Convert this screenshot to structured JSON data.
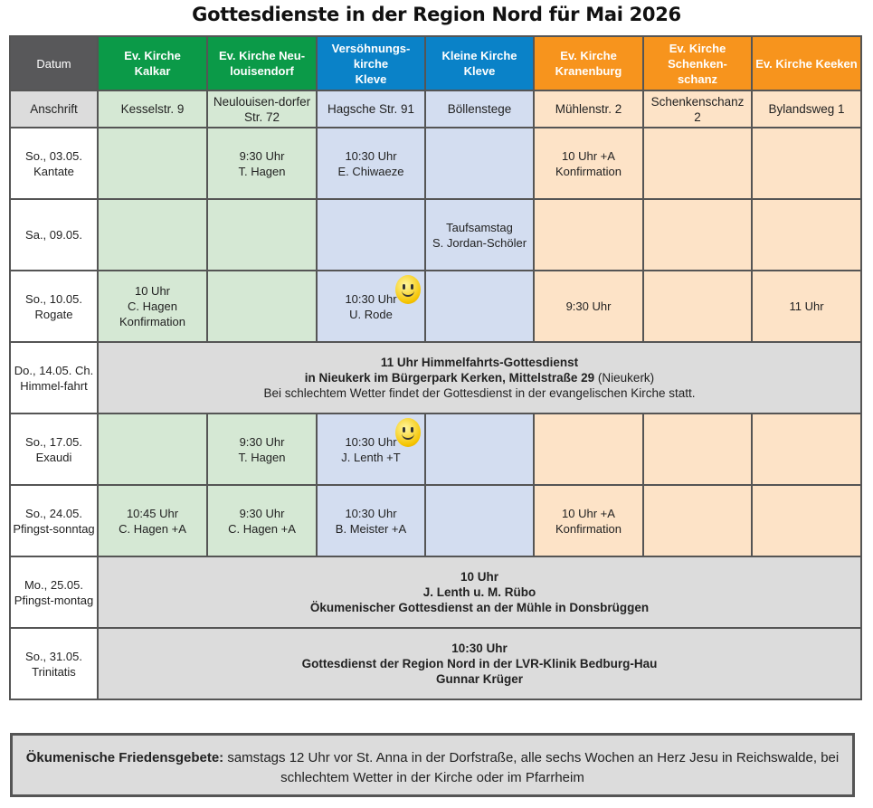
{
  "title": "Gottesdienste in der Region Nord für Mai 2026",
  "colors": {
    "header_dark": "#58585a",
    "green": "#0b9a48",
    "blue": "#0a82c8",
    "orange": "#f7941d"
  },
  "header": {
    "date": "Datum",
    "address_label": "Anschrift",
    "churches": [
      {
        "name": "Ev. Kirche Kalkar",
        "address": "Kesselstr. 9",
        "color": "green"
      },
      {
        "name": "Ev. Kirche Neu-louisendorf",
        "address": "Neulouisen-dorfer Str. 72",
        "color": "green"
      },
      {
        "name": "Versöhnungs-kirche Kleve",
        "address": "Hagsche Str. 91",
        "color": "blue"
      },
      {
        "name": "Kleine Kirche Kleve",
        "address": "Böllenstege",
        "color": "blue"
      },
      {
        "name": "Ev. Kirche Kranenburg",
        "address": "Mühlenstr. 2",
        "color": "orange"
      },
      {
        "name": "Ev. Kirche Schenken-schanz",
        "address": "Schenkenschanz 2",
        "color": "orange"
      },
      {
        "name": "Ev. Kirche Keeken",
        "address": "Bylandsweg 1",
        "color": "orange"
      }
    ]
  },
  "rows": [
    {
      "date": "So., 03.05. Kantate",
      "cells": [
        "",
        "9:30 Uhr\nT. Hagen",
        "10:30 Uhr\nE. Chiwaeze",
        "",
        "10 Uhr +A\nKonfirmation",
        "",
        ""
      ]
    },
    {
      "date": "Sa., 09.05.",
      "cells": [
        "",
        "",
        "",
        "Taufsamstag\nS. Jordan-Schöler",
        "",
        "",
        ""
      ]
    },
    {
      "date": "So., 10.05. Rogate",
      "cells": [
        "10 Uhr\nC. Hagen\nKonfirmation",
        "",
        "10:30 Uhr\nU. Rode",
        "",
        "9:30 Uhr",
        "",
        "11 Uhr"
      ],
      "smiley": true
    },
    {
      "date": "Do., 14.05. Ch. Himmel-fahrt",
      "merged": {
        "line1": "11 Uhr Himmelfahrts-Gottesdienst",
        "line2": "in Nieukerk im Bürgerpark Kerken, Mittelstraße 29",
        "line2_suffix": " (Nieukerk)",
        "line3": "Bei schlechtem Wetter findet der Gottesdienst in der evangelischen Kirche statt."
      }
    },
    {
      "date": "So., 17.05. Exaudi",
      "cells": [
        "",
        "9:30 Uhr\nT. Hagen",
        "10:30 Uhr\nJ. Lenth +T",
        "",
        "",
        "",
        ""
      ],
      "smiley": true
    },
    {
      "date": "So., 24.05. Pfingst-sonntag",
      "cells": [
        "10:45 Uhr\nC. Hagen +A",
        "9:30 Uhr\nC. Hagen +A",
        "10:30 Uhr\nB. Meister +A",
        "",
        "10 Uhr +A\nKonfirmation",
        "",
        ""
      ]
    },
    {
      "date": "Mo., 25.05. Pfingst-montag",
      "merged": {
        "line1": "10 Uhr",
        "line2": "J. Lenth u. M. Rübo",
        "line3": "Ökumenischer Gottesdienst an der Mühle in Donsbrüggen"
      }
    },
    {
      "date": "So., 31.05. Trinitatis",
      "merged": {
        "line1": "10:30 Uhr",
        "line2": "Gottesdienst der Region Nord in der LVR-Klinik Bedburg-Hau",
        "line3": "Gunnar Krüger"
      }
    }
  ],
  "footer": {
    "label": "Ökumenische Friedensgebete:",
    "text": " samstags 12  Uhr vor St. Anna in der Dorfstraße, alle sechs Wochen an Herz Jesu in Reichswalde, bei schlechtem Wetter in der Kirche oder im Pfarrheim"
  }
}
